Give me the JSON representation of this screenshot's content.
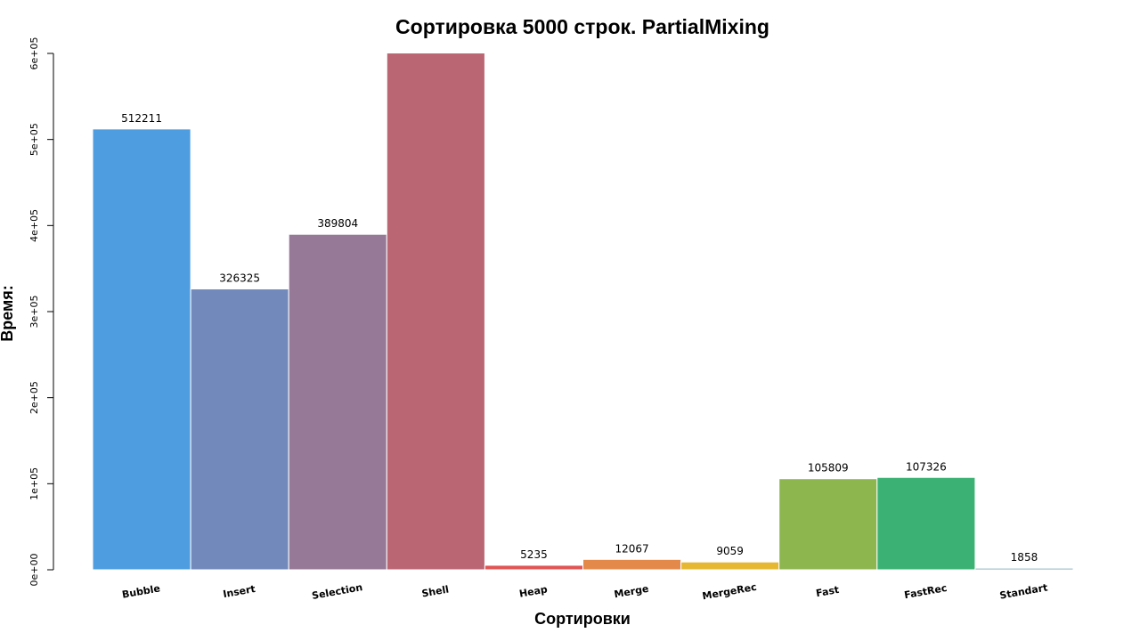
{
  "chart_data": {
    "type": "bar",
    "title": "Сортировка 5000 строк. PartialMixing",
    "xlabel": "Сортировки",
    "ylabel": "Время:",
    "categories": [
      "Bubble",
      "Insert",
      "Selection",
      "Shell",
      "Heap",
      "Merge",
      "MergeRec",
      "Fast",
      "FastRec",
      "Standart"
    ],
    "values": [
      512211,
      326325,
      389804,
      600500,
      5235,
      12067,
      9059,
      105809,
      107326,
      1858
    ],
    "data_labels": [
      "512211",
      "326325",
      "389804",
      "",
      "5235",
      "12067",
      "9059",
      "105809",
      "107326",
      "1858"
    ],
    "colors": [
      "#4d9de0",
      "#728abb",
      "#967996",
      "#bb6673",
      "#e05555",
      "#e38a4b",
      "#e6b832",
      "#8db64f",
      "#3bb273",
      "#6fa0b3"
    ],
    "ylim": [
      0,
      600000
    ],
    "yticks": [
      0,
      100000,
      200000,
      300000,
      400000,
      500000,
      600000
    ],
    "ytick_labels": [
      "0e+00",
      "1e+05",
      "2e+05",
      "3e+05",
      "4e+05",
      "5e+05",
      "6e+05"
    ],
    "grid": false,
    "legend": "none"
  }
}
